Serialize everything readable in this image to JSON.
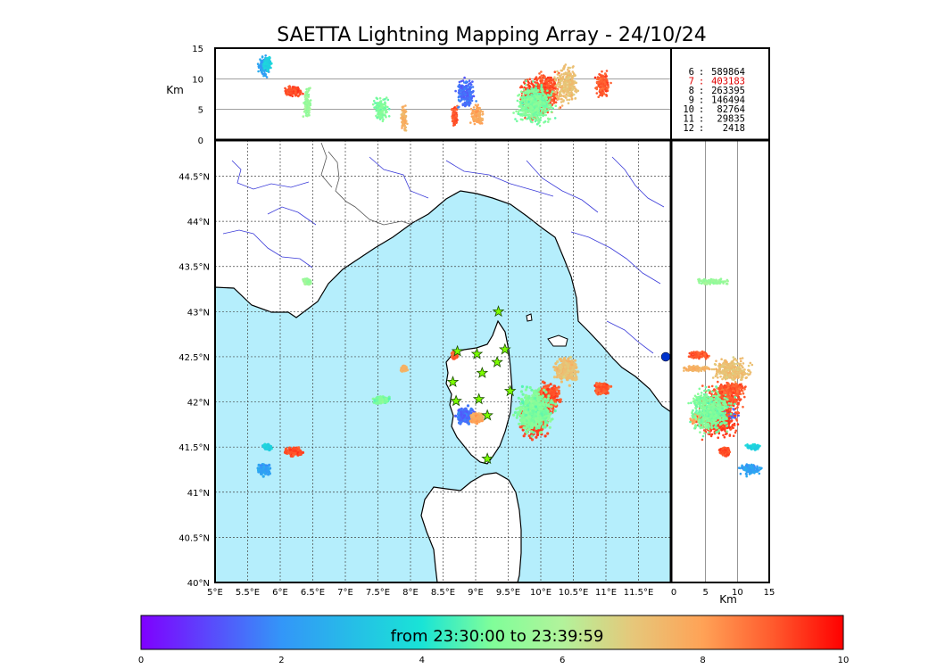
{
  "chart_data": {
    "type": "scatter",
    "title": "SAETTA Lightning Mapping Array - 24/10/24",
    "map": {
      "lon_range": [
        5,
        12
      ],
      "lat_range": [
        40,
        44.9
      ],
      "x_ticks": [
        "5°E",
        "5.5°E",
        "6°E",
        "6.5°E",
        "7°E",
        "7.5°E",
        "8°E",
        "8.5°E",
        "9°E",
        "9.5°E",
        "10°E",
        "10.5°E",
        "11°E",
        "11.5°E"
      ],
      "y_ticks": [
        "40°N",
        "40.5°N",
        "41°N",
        "41.5°N",
        "42°N",
        "42.5°N",
        "43°N",
        "43.5°N",
        "44°N",
        "44.5°N"
      ],
      "grid": true,
      "sea_color": "#b5eefc"
    },
    "altitude_panel": {
      "ylabel": "Km",
      "ylim": [
        0,
        15
      ],
      "y_ticks": [
        "0",
        "5",
        "10",
        "15"
      ]
    },
    "side_panel": {
      "xlabel": "Km",
      "xlim": [
        0,
        15
      ],
      "x_ticks": [
        "0",
        "5",
        "10",
        "15"
      ]
    },
    "station_counts": [
      {
        "stations": "6",
        "count": "589864",
        "color": "#000000"
      },
      {
        "stations": "7",
        "count": "403183",
        "color": "#e00000"
      },
      {
        "stations": "8",
        "count": "263395",
        "color": "#000000"
      },
      {
        "stations": "9",
        "count": "146494",
        "color": "#000000"
      },
      {
        "stations": "10",
        "count": "82764",
        "color": "#000000"
      },
      {
        "stations": "11",
        "count": "29835",
        "color": "#000000"
      },
      {
        "stations": "12",
        "count": "2418",
        "color": "#000000"
      }
    ],
    "colorbar": {
      "label": "from 23:30:00 to 23:39:59",
      "range": [
        0,
        10
      ],
      "ticks": [
        "0",
        "2",
        "4",
        "6",
        "8",
        "10"
      ],
      "colormap": "rainbow"
    },
    "stations": [
      {
        "lon": 9.35,
        "lat": 43.0
      },
      {
        "lon": 8.72,
        "lat": 42.56
      },
      {
        "lon": 9.02,
        "lat": 42.53
      },
      {
        "lon": 9.45,
        "lat": 42.58
      },
      {
        "lon": 9.33,
        "lat": 42.44
      },
      {
        "lon": 9.1,
        "lat": 42.32
      },
      {
        "lon": 8.65,
        "lat": 42.22
      },
      {
        "lon": 9.53,
        "lat": 42.12
      },
      {
        "lon": 8.7,
        "lat": 42.01
      },
      {
        "lon": 9.05,
        "lat": 42.03
      },
      {
        "lon": 9.18,
        "lat": 41.85
      },
      {
        "lon": 9.18,
        "lat": 41.37
      }
    ],
    "storm_cells": [
      {
        "lon": 5.75,
        "lat": 41.25,
        "dlon": 0.12,
        "dlat": 0.08,
        "time": 2.3,
        "alt": 12,
        "dalt": 2
      },
      {
        "lon": 5.8,
        "lat": 41.5,
        "dlon": 0.08,
        "dlat": 0.04,
        "time": 3.5,
        "alt": 12.5,
        "dalt": 1.5
      },
      {
        "lon": 6.2,
        "lat": 41.45,
        "dlon": 0.18,
        "dlat": 0.06,
        "time": 9.2,
        "alt": 8,
        "dalt": 1
      },
      {
        "lon": 6.42,
        "lat": 43.33,
        "dlon": 0.08,
        "dlat": 0.04,
        "time": 5.5,
        "alt": 6,
        "dalt": 3
      },
      {
        "lon": 7.9,
        "lat": 42.37,
        "dlon": 0.06,
        "dlat": 0.04,
        "time": 7.6,
        "alt": 3.5,
        "dalt": 2.5
      },
      {
        "lon": 7.55,
        "lat": 42.02,
        "dlon": 0.15,
        "dlat": 0.05,
        "time": 5.0,
        "alt": 5,
        "dalt": 2.5
      },
      {
        "lon": 8.68,
        "lat": 42.52,
        "dlon": 0.06,
        "dlat": 0.06,
        "time": 9.0,
        "alt": 4,
        "dalt": 2
      },
      {
        "lon": 8.85,
        "lat": 41.85,
        "dlon": 0.18,
        "dlat": 0.12,
        "time": 1.5,
        "alt": 7.5,
        "dalt": 3
      },
      {
        "lon": 9.02,
        "lat": 41.82,
        "dlon": 0.12,
        "dlat": 0.08,
        "time": 7.8,
        "alt": 4,
        "dalt": 2
      },
      {
        "lon": 9.9,
        "lat": 41.8,
        "dlon": 0.25,
        "dlat": 0.25,
        "time": 9.2,
        "alt": 7,
        "dalt": 4
      },
      {
        "lon": 10.1,
        "lat": 42.05,
        "dlon": 0.25,
        "dlat": 0.2,
        "time": 9.1,
        "alt": 8,
        "dalt": 4
      },
      {
        "lon": 10.4,
        "lat": 42.35,
        "dlon": 0.22,
        "dlat": 0.18,
        "time": 7.2,
        "alt": 9,
        "dalt": 4
      },
      {
        "lon": 9.9,
        "lat": 41.9,
        "dlon": 0.35,
        "dlat": 0.3,
        "time": 5.0,
        "alt": 6,
        "dalt": 4
      },
      {
        "lon": 10.95,
        "lat": 42.15,
        "dlon": 0.15,
        "dlat": 0.08,
        "time": 9.0,
        "alt": 9,
        "dalt": 3
      }
    ]
  }
}
